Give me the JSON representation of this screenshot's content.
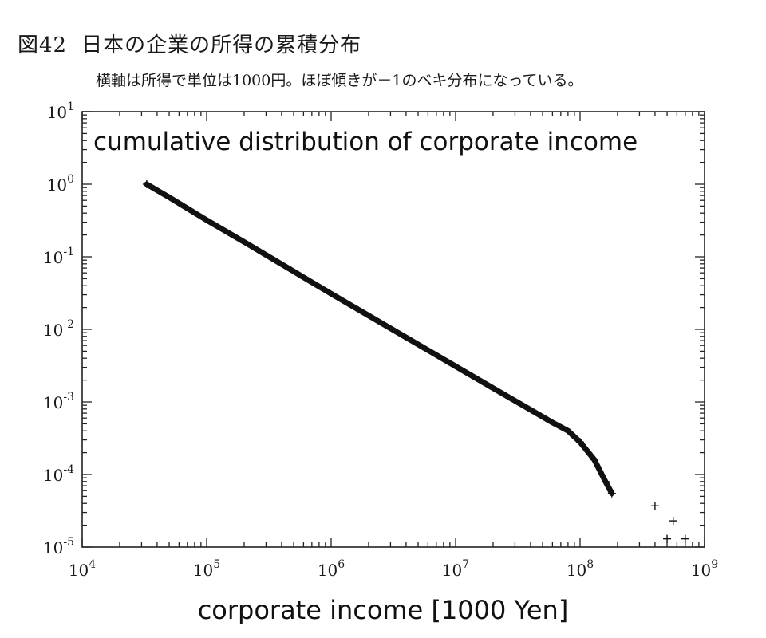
{
  "figure": {
    "number": "図42",
    "title": "日本の企業の所得の累積分布",
    "caption": "横軸は所得で単位は1000円。ほぼ傾きが－1のベキ分布になっている。"
  },
  "chart_data": {
    "type": "scatter",
    "title": "cumulative distribution of corporate income",
    "xlabel": "corporate income [1000 Yen]",
    "ylabel": "",
    "xscale": "log",
    "yscale": "log",
    "xlim": [
      10000,
      1000000000
    ],
    "ylim": [
      1e-05,
      10
    ],
    "x_tick_labels": [
      {
        "base": "10",
        "exp": "4"
      },
      {
        "base": "10",
        "exp": "5"
      },
      {
        "base": "10",
        "exp": "6"
      },
      {
        "base": "10",
        "exp": "7"
      },
      {
        "base": "10",
        "exp": "8"
      },
      {
        "base": "10",
        "exp": "9"
      }
    ],
    "y_tick_labels": [
      {
        "base": "10",
        "exp": "1"
      },
      {
        "base": "10",
        "exp": "0"
      },
      {
        "base": "10",
        "exp": "-1"
      },
      {
        "base": "10",
        "exp": "-2"
      },
      {
        "base": "10",
        "exp": "-3"
      },
      {
        "base": "10",
        "exp": "-4"
      },
      {
        "base": "10",
        "exp": "-5"
      }
    ],
    "grid": false,
    "marker": "+",
    "series": [
      {
        "x": [
          33000,
          50000,
          100000,
          200000,
          500000,
          1000000,
          2000000,
          5000000,
          10000000,
          20000000,
          40000000,
          60000000,
          80000000,
          100000000,
          130000000,
          160000000,
          180000000
        ],
        "y": [
          1.0,
          0.66,
          0.32,
          0.16,
          0.063,
          0.031,
          0.0155,
          0.0062,
          0.0031,
          0.00155,
          0.00078,
          0.00052,
          0.0004,
          0.00028,
          0.00016,
          8e-05,
          5.5e-05
        ]
      },
      {
        "x": [
          400000000,
          500000000,
          560000000,
          700000000
        ],
        "y": [
          3.7e-05,
          1.3e-05,
          2.3e-05,
          1.3e-05
        ]
      }
    ]
  }
}
